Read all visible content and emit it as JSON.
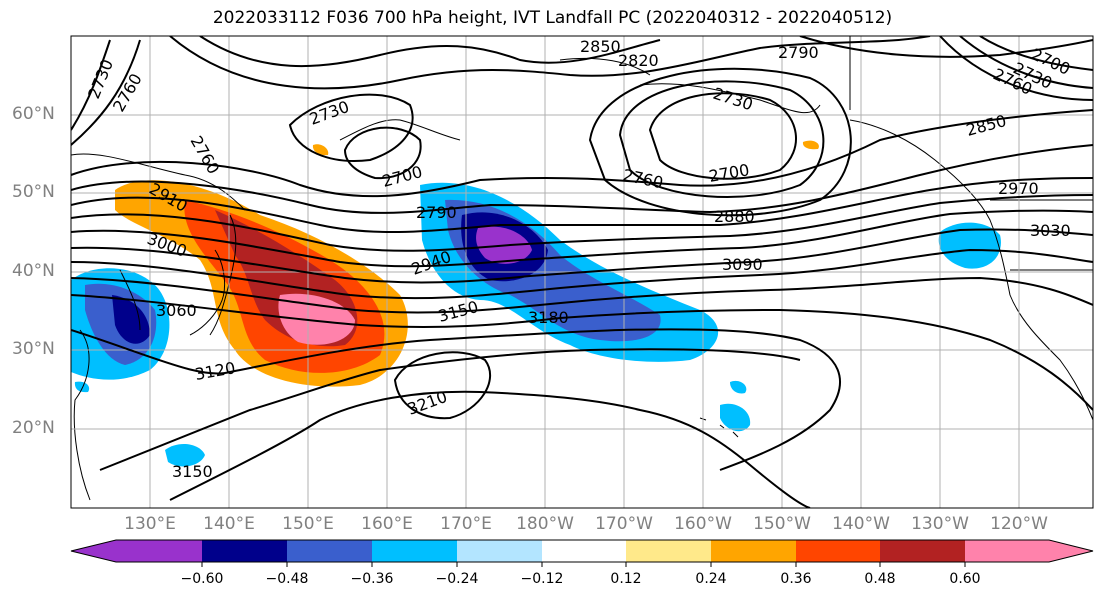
{
  "title": "2022033112 F036 700 hPa height, IVT Landfall PC (2022040312 - 2022040512)",
  "map": {
    "lat_labels": [
      "60°N",
      "50°N",
      "40°N",
      "30°N",
      "20°N"
    ],
    "lon_labels": [
      "130°E",
      "140°E",
      "150°E",
      "160°E",
      "170°E",
      "180°W",
      "170°W",
      "160°W",
      "150°W",
      "140°W",
      "130°W",
      "120°W"
    ],
    "contour_labels": [
      "2730",
      "2760",
      "2850",
      "2820",
      "2790",
      "2730",
      "2700",
      "2760",
      "2730",
      "2700",
      "2850",
      "2700",
      "2760",
      "2730",
      "2760",
      "2880",
      "2910",
      "3000",
      "2790",
      "2940",
      "2970",
      "3030",
      "3090",
      "3060",
      "3150",
      "3180",
      "3120",
      "3210",
      "3150"
    ]
  },
  "colorbar": {
    "ticks": [
      "−0.60",
      "−0.48",
      "−0.36",
      "−0.24",
      "−0.12",
      "0.12",
      "0.24",
      "0.36",
      "0.48",
      "0.60"
    ],
    "colors": [
      "#9932cc",
      "#00008b",
      "#3a5fcd",
      "#00bfff",
      "#b3e5ff",
      "#ffffff",
      "#ffe98a",
      "#ffa500",
      "#ff4500",
      "#b22222",
      "#ff82ab"
    ]
  }
}
